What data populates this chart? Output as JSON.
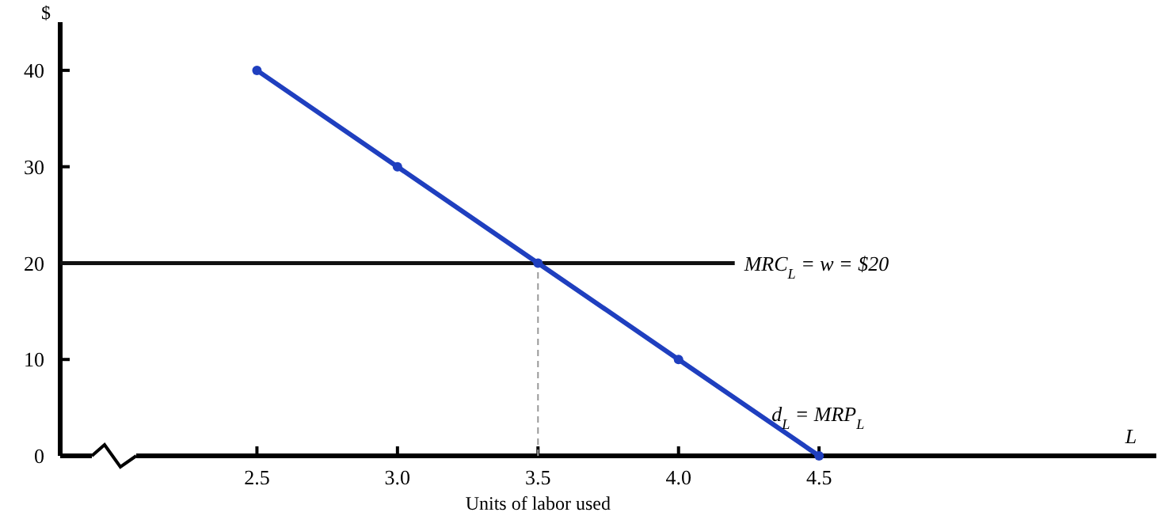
{
  "chart_data": {
    "type": "line",
    "xlabel": "Units of labor used",
    "ylabel": "$",
    "xlim": [
      1.8,
      5.7
    ],
    "xticks": [
      2.5,
      {
        "value": 3,
        "label": "3.0"
      },
      3.5,
      {
        "value": 4,
        "label": "4.0"
      },
      4.5
    ],
    "ylim": [
      0,
      45
    ],
    "yticks": [
      0,
      10,
      20,
      30,
      40
    ],
    "grid": false,
    "series": [
      {
        "name": "MRC$_{L}$ = w = $20",
        "color": "#111111",
        "x": [
          1.8,
          4.2
        ],
        "values": [
          20,
          20
        ],
        "marker": "none",
        "line_style": "solid"
      },
      {
        "color": "#999999",
        "x": [
          3.5,
          3.5
        ],
        "values": [
          0,
          20
        ],
        "marker": "none",
        "line_style": "dashed"
      },
      {
        "name": "d$_{L}$ = MRP$_{L}$",
        "color": "#1f3fbf",
        "x": [
          2.5,
          3.0,
          3.5,
          4.0,
          4.5
        ],
        "values": [
          40,
          30,
          20,
          10,
          0
        ],
        "marker": "circle",
        "line_style": "solid"
      }
    ],
    "annotations": [
      "L"
    ]
  }
}
